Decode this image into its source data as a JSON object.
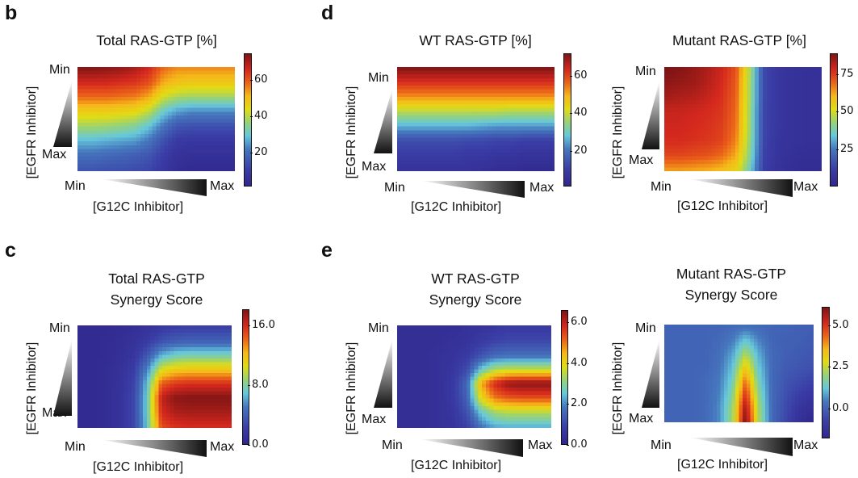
{
  "panels": {
    "b": "b",
    "c": "c",
    "d": "d",
    "e": "e"
  },
  "axis_labels": {
    "y": "[EGFR Inhibitor]",
    "x": "[G12C Inhibitor]",
    "min": "Min",
    "max": "Max"
  },
  "chart_data": [
    {
      "id": "total-rasgtp",
      "panel": "b",
      "type": "heatmap",
      "title": "Total RAS-GTP [%]",
      "xlabel": "[G12C Inhibitor]",
      "ylabel": "[EGFR Inhibitor]",
      "x_ticks": [
        "Min",
        "Max"
      ],
      "y_ticks": [
        "Min",
        "Max"
      ],
      "colormap": "jet-like",
      "clim": [
        1,
        75
      ],
      "colorbar_ticks": [
        "20",
        "40",
        "60"
      ],
      "colorbar_tick_values": [
        20,
        40,
        60
      ],
      "rows_note": "rows from EGFR Min (top) to Max (bottom); columns from G12C Min (left) to Max (right)",
      "values": [
        [
          74,
          74,
          73,
          72,
          70,
          66,
          58,
          55,
          55,
          55,
          55,
          55
        ],
        [
          66,
          66,
          66,
          65,
          64,
          61,
          52,
          49,
          48,
          48,
          48,
          48
        ],
        [
          58,
          58,
          58,
          57,
          56,
          52,
          42,
          38,
          37,
          37,
          37,
          37
        ],
        [
          47,
          47,
          47,
          46,
          45,
          40,
          30,
          25,
          23,
          23,
          23,
          23
        ],
        [
          38,
          38,
          37,
          36,
          34,
          29,
          21,
          15,
          14,
          14,
          14,
          14
        ],
        [
          28,
          28,
          27,
          26,
          25,
          21,
          14,
          9,
          8,
          8,
          8,
          8
        ],
        [
          20,
          20,
          19,
          18,
          17,
          15,
          10,
          6,
          5,
          5,
          5,
          5
        ],
        [
          15,
          15,
          14,
          14,
          13,
          12,
          8,
          4,
          3,
          3,
          3,
          3
        ]
      ]
    },
    {
      "id": "total-synergy",
      "panel": "c",
      "type": "heatmap",
      "title": "Total RAS-GTP\nSynergy Score",
      "title_lines": [
        "Total RAS-GTP",
        "Synergy Score"
      ],
      "xlabel": "[G12C Inhibitor]",
      "ylabel": "[EGFR Inhibitor]",
      "x_ticks": [
        "Min",
        "Max"
      ],
      "y_ticks": [
        "Min",
        "Max"
      ],
      "colormap": "jet-like",
      "clim": [
        0,
        18.2
      ],
      "colorbar_ticks": [
        "0.0",
        "8.0",
        "16.0"
      ],
      "colorbar_tick_values": [
        0,
        8,
        16
      ],
      "values": [
        [
          0.5,
          0.5,
          0.5,
          0.6,
          0.8,
          1.2,
          1.8,
          2.2,
          2.3,
          2.3,
          2.3,
          2.3
        ],
        [
          0.5,
          0.5,
          0.6,
          0.8,
          1.2,
          2.0,
          3.2,
          3.8,
          4.0,
          4.0,
          4.0,
          4.0
        ],
        [
          0.5,
          0.5,
          0.6,
          0.9,
          1.6,
          3.6,
          6.5,
          7.5,
          7.8,
          7.8,
          7.8,
          7.8
        ],
        [
          0.5,
          0.5,
          0.7,
          1.1,
          2.2,
          5.5,
          10.5,
          11.5,
          11.8,
          11.8,
          11.8,
          11.8
        ],
        [
          0.5,
          0.5,
          0.7,
          1.2,
          2.6,
          7.0,
          14.5,
          15.5,
          15.8,
          15.8,
          15.8,
          15.8
        ],
        [
          0.5,
          0.5,
          0.7,
          1.3,
          2.8,
          7.5,
          16.5,
          17.8,
          18.0,
          18.0,
          18.0,
          18.0
        ],
        [
          0.5,
          0.5,
          0.7,
          1.3,
          2.8,
          7.5,
          16.0,
          17.0,
          17.2,
          17.2,
          17.2,
          17.2
        ],
        [
          0.5,
          0.5,
          0.7,
          1.3,
          2.7,
          7.2,
          15.0,
          15.8,
          16.0,
          16.0,
          16.0,
          16.0
        ]
      ]
    },
    {
      "id": "wt-rasgtp",
      "panel": "d",
      "type": "heatmap",
      "title": "WT RAS-GTP [%]",
      "xlabel": "[G12C Inhibitor]",
      "ylabel": "[EGFR Inhibitor]",
      "x_ticks": [
        "Min",
        "Max"
      ],
      "y_ticks": [
        "Min",
        "Max"
      ],
      "colormap": "jet-like",
      "clim": [
        1,
        72
      ],
      "colorbar_ticks": [
        "20",
        "40",
        "60"
      ],
      "colorbar_tick_values": [
        20,
        40,
        60
      ],
      "values": [
        [
          71,
          71,
          71,
          71,
          71,
          71,
          71,
          71,
          71,
          71,
          71,
          71
        ],
        [
          62,
          62,
          62,
          62,
          62,
          62,
          62,
          62,
          62,
          62,
          62,
          62
        ],
        [
          52,
          52,
          52,
          52,
          52,
          52,
          52,
          52,
          52,
          52,
          52,
          52
        ],
        [
          38,
          38,
          38,
          38,
          38,
          38,
          38,
          38,
          37,
          37,
          37,
          37
        ],
        [
          26,
          26,
          26,
          26,
          26,
          26,
          25,
          24,
          24,
          24,
          24,
          24
        ],
        [
          13,
          13,
          13,
          13,
          13,
          12,
          12,
          11,
          11,
          10,
          10,
          10
        ],
        [
          9,
          9,
          9,
          9,
          9,
          8,
          8,
          7,
          7,
          6,
          6,
          6
        ],
        [
          6,
          6,
          6,
          6,
          6,
          6,
          5,
          4,
          4,
          3,
          3,
          3
        ]
      ]
    },
    {
      "id": "mutant-rasgtp",
      "panel": "d",
      "type": "heatmap",
      "title": "Mutant RAS-GTP [%]",
      "xlabel": "[G12C Inhibitor]",
      "ylabel": "[EGFR Inhibitor]",
      "x_ticks": [
        "Min",
        "Max"
      ],
      "y_ticks": [
        "Min",
        "Max"
      ],
      "colormap": "jet-like",
      "clim": [
        0,
        89
      ],
      "colorbar_ticks": [
        "25",
        "50",
        "75"
      ],
      "colorbar_tick_values": [
        25,
        50,
        75
      ],
      "values": [
        [
          89,
          88,
          86,
          83,
          79,
          72,
          45,
          14,
          8,
          6,
          5,
          5
        ],
        [
          87,
          86,
          85,
          82,
          78,
          71,
          44,
          14,
          8,
          6,
          5,
          5
        ],
        [
          84,
          83,
          82,
          80,
          77,
          70,
          44,
          14,
          8,
          6,
          5,
          5
        ],
        [
          80,
          80,
          79,
          78,
          76,
          69,
          43,
          13,
          8,
          6,
          5,
          5
        ],
        [
          79,
          79,
          78,
          77,
          75,
          68,
          43,
          13,
          8,
          6,
          5,
          5
        ],
        [
          78,
          78,
          77,
          76,
          74,
          66,
          42,
          13,
          7,
          6,
          5,
          5
        ],
        [
          74,
          74,
          73,
          72,
          69,
          62,
          40,
          12,
          7,
          5,
          4,
          4
        ],
        [
          64,
          64,
          63,
          62,
          60,
          55,
          36,
          11,
          6,
          4,
          3,
          3
        ]
      ]
    },
    {
      "id": "wt-synergy",
      "panel": "e",
      "type": "heatmap",
      "title": "WT RAS-GTP\nSynergy Score",
      "title_lines": [
        "WT RAS-GTP",
        "Synergy Score"
      ],
      "xlabel": "[G12C Inhibitor]",
      "ylabel": "[EGFR Inhibitor]",
      "x_ticks": [
        "Min",
        "Max"
      ],
      "y_ticks": [
        "Min",
        "Max"
      ],
      "colormap": "jet-like",
      "clim": [
        0,
        6.6
      ],
      "colorbar_ticks": [
        "0.0",
        "2.0",
        "4.0",
        "6.0"
      ],
      "colorbar_tick_values": [
        0,
        2,
        4,
        6
      ],
      "values": [
        [
          0.3,
          0.3,
          0.3,
          0.3,
          0.3,
          0.4,
          0.5,
          0.6,
          0.7,
          0.7,
          0.7,
          0.7
        ],
        [
          0.3,
          0.3,
          0.3,
          0.3,
          0.4,
          0.5,
          0.7,
          0.9,
          1.0,
          1.0,
          1.0,
          1.0
        ],
        [
          0.3,
          0.3,
          0.3,
          0.4,
          0.5,
          0.7,
          1.2,
          1.6,
          1.7,
          1.7,
          1.7,
          1.7
        ],
        [
          0.3,
          0.3,
          0.3,
          0.4,
          0.6,
          1.1,
          2.6,
          3.4,
          3.6,
          3.6,
          3.6,
          3.6
        ],
        [
          0.3,
          0.3,
          0.3,
          0.4,
          0.7,
          1.6,
          4.6,
          5.8,
          6.4,
          6.5,
          6.5,
          6.5
        ],
        [
          0.3,
          0.3,
          0.3,
          0.4,
          0.7,
          1.5,
          4.0,
          5.0,
          5.3,
          5.4,
          5.4,
          5.4
        ],
        [
          0.3,
          0.3,
          0.3,
          0.4,
          0.6,
          1.2,
          2.6,
          3.3,
          3.5,
          3.5,
          3.5,
          3.5
        ],
        [
          0.3,
          0.3,
          0.3,
          0.4,
          0.5,
          0.9,
          1.8,
          2.3,
          2.4,
          2.4,
          2.4,
          2.4
        ]
      ]
    },
    {
      "id": "mutant-synergy",
      "panel": "e",
      "type": "heatmap",
      "title": "Mutant RAS-GTP\nSynergy Score",
      "title_lines": [
        "Mutant RAS-GTP",
        "Synergy Score"
      ],
      "xlabel": "[G12C Inhibitor]",
      "ylabel": "[EGFR Inhibitor]",
      "x_ticks": [
        "Min",
        "Max"
      ],
      "y_ticks": [
        "Min",
        "Max"
      ],
      "colormap": "jet-like",
      "clim": [
        -1.8,
        6.1
      ],
      "colorbar_ticks": [
        "0.0",
        "2.5",
        "5.0"
      ],
      "colorbar_tick_values": [
        0,
        2.5,
        5
      ],
      "values": [
        [
          0.0,
          0.0,
          0.0,
          0.0,
          0.0,
          0.1,
          0.2,
          0.1,
          0.0,
          0.0,
          -0.1,
          -0.1
        ],
        [
          0.0,
          0.0,
          0.0,
          0.0,
          0.1,
          0.4,
          1.2,
          0.5,
          0.0,
          -0.1,
          -0.1,
          -0.2
        ],
        [
          0.0,
          0.0,
          0.0,
          0.0,
          0.2,
          0.8,
          2.2,
          0.9,
          0.1,
          -0.1,
          -0.2,
          -0.3
        ],
        [
          0.0,
          0.0,
          0.0,
          0.0,
          0.3,
          1.1,
          3.2,
          1.2,
          0.1,
          -0.2,
          -0.3,
          -0.4
        ],
        [
          0.0,
          0.0,
          0.0,
          0.1,
          0.4,
          1.4,
          4.2,
          1.5,
          0.1,
          -0.3,
          -0.5,
          -0.7
        ],
        [
          0.0,
          0.0,
          0.0,
          0.1,
          0.5,
          1.7,
          5.0,
          1.8,
          0.1,
          -0.4,
          -0.8,
          -1.1
        ],
        [
          0.0,
          0.0,
          0.0,
          0.1,
          0.6,
          2.0,
          5.7,
          2.1,
          0.1,
          -0.5,
          -1.1,
          -1.4
        ],
        [
          0.0,
          0.0,
          0.0,
          0.1,
          0.6,
          2.1,
          6.1,
          2.2,
          0.1,
          -0.6,
          -1.3,
          -1.7
        ]
      ]
    }
  ]
}
